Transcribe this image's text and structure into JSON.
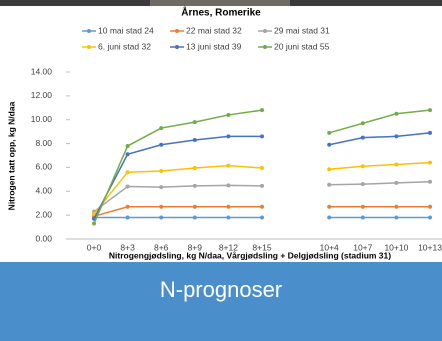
{
  "chart_data": {
    "type": "line",
    "title": "Årnes, Romerike",
    "y_label": "Nitrogen tatt opp, kg N/daa",
    "x_label": "Nitrogengjødsling, kg N/daa, Vårgjødsling + Delgjødsling (stadium 31)",
    "categories": [
      "0+0",
      "8+3",
      "8+6",
      "8+9",
      "8+12",
      "8+15",
      null,
      "10+4",
      "10+7",
      "10+10",
      "10+13"
    ],
    "series": [
      {
        "name": "10 mai stad 24",
        "color": "#5b9bd5",
        "values": [
          1.8,
          1.8,
          1.8,
          1.8,
          1.8,
          1.8,
          null,
          1.8,
          1.8,
          1.8,
          1.8
        ]
      },
      {
        "name": "22 mai stad 32",
        "color": "#ed7d31",
        "values": [
          1.9,
          2.7,
          2.7,
          2.7,
          2.7,
          2.7,
          null,
          2.7,
          2.7,
          2.7,
          2.7
        ]
      },
      {
        "name": "29 mai stad 31",
        "color": "#a5a5a5",
        "values": [
          2.3,
          4.4,
          4.35,
          4.45,
          4.5,
          4.45,
          null,
          4.55,
          4.6,
          4.7,
          4.8
        ]
      },
      {
        "name": "6. juni stad 32",
        "color": "#ffc000",
        "values": [
          2.1,
          5.6,
          5.7,
          5.95,
          6.15,
          5.95,
          null,
          5.85,
          6.1,
          6.25,
          6.4
        ]
      },
      {
        "name": "13 juni stad 39",
        "color": "#4472c4",
        "values": [
          1.7,
          7.1,
          7.9,
          8.3,
          8.6,
          8.6,
          null,
          7.9,
          8.5,
          8.6,
          8.9
        ]
      },
      {
        "name": "20 juni stad 55",
        "color": "#70ad47",
        "values": [
          1.3,
          7.8,
          9.3,
          9.8,
          10.4,
          10.8,
          null,
          8.9,
          9.7,
          10.5,
          10.8
        ]
      }
    ],
    "ylim": [
      0,
      14
    ],
    "yticks": [
      {
        "value": 0,
        "label": "0.00"
      },
      {
        "value": 2,
        "label": "2.00"
      },
      {
        "value": 4,
        "label": "4.00"
      },
      {
        "value": 6,
        "label": "6.00"
      },
      {
        "value": 8,
        "label": "8.00"
      },
      {
        "value": 10,
        "label": "10.00"
      },
      {
        "value": 12,
        "label": "12.00"
      },
      {
        "value": 14,
        "label": "14.00"
      }
    ],
    "legend": "top"
  },
  "banner": {
    "text": "N-prognoser"
  }
}
